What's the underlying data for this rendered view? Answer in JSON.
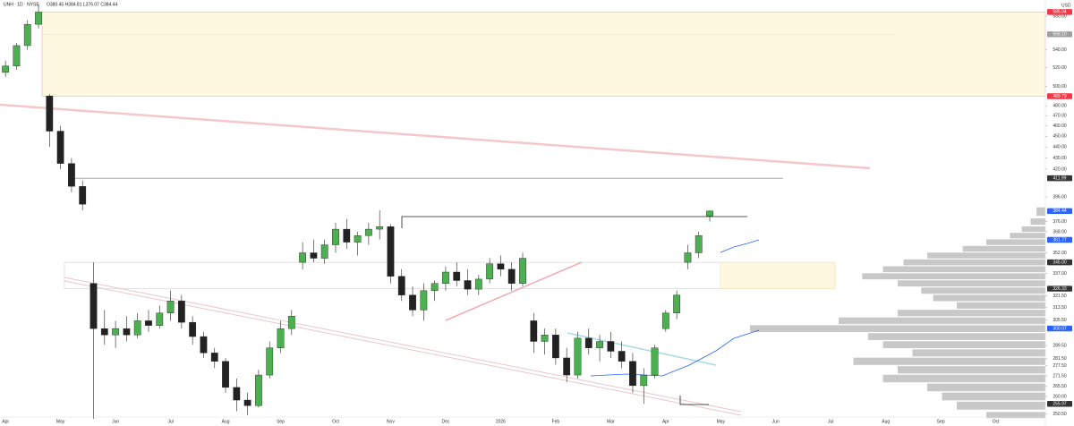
{
  "chart_data": {
    "type": "candlestick",
    "title": "UNH · 1D · NYSE",
    "subtitle": "O380.45 H384.81 L376.07 C384.44",
    "y_axis_label": "USD",
    "log_scale": true,
    "up_color": "#4caf50",
    "down_color": "#222222",
    "categories": [
      "Apr",
      null,
      null,
      null,
      null,
      "May",
      null,
      null,
      null,
      null,
      "Jun",
      null,
      null,
      null,
      null,
      "Jul",
      null,
      null,
      null,
      null,
      "Aug",
      null,
      null,
      null,
      null,
      "Sep",
      null,
      null,
      null,
      null,
      "Oct",
      null,
      null,
      null,
      null,
      "Nov",
      null,
      null,
      null,
      null,
      "Dec",
      null,
      null,
      null,
      null,
      "2026",
      null,
      null,
      null,
      null,
      "Feb",
      null,
      null,
      null,
      null,
      "Mar",
      null,
      null,
      null,
      null,
      "Apr",
      null,
      null,
      null,
      null,
      "May",
      null,
      null,
      null,
      null,
      "Jun",
      null,
      null,
      null,
      null,
      "Jul",
      null,
      null,
      null,
      null,
      "Aug",
      null,
      null,
      null,
      null,
      "Sep",
      null,
      null,
      null,
      null,
      "Oct",
      null,
      null,
      null,
      null
    ],
    "open": [
      515,
      522,
      545,
      570,
      490,
      455,
      425,
      405,
      330,
      300,
      296,
      300,
      296,
      305,
      302,
      310,
      318,
      304,
      295,
      285,
      280,
      265,
      258,
      255,
      272,
      288,
      300,
      345,
      352,
      348,
      358,
      370,
      360,
      365,
      370,
      372,
      335,
      322,
      312,
      325,
      330,
      338,
      332,
      326,
      333,
      344,
      340,
      330,
      305,
      292,
      296,
      282,
      272,
      294,
      288,
      292,
      286,
      280,
      266,
      272,
      300,
      310,
      345,
      352,
      380.45,
      null,
      null,
      null,
      null,
      null,
      null,
      null,
      null,
      null,
      null,
      null,
      null,
      null,
      null,
      null,
      null,
      null,
      null,
      null,
      null,
      null,
      null,
      null,
      null,
      null,
      null,
      null,
      null,
      null,
      null
    ],
    "high": [
      528,
      548,
      575,
      595,
      492,
      460,
      430,
      410,
      345,
      312,
      305,
      308,
      310,
      312,
      315,
      325,
      322,
      308,
      298,
      288,
      282,
      270,
      262,
      275,
      292,
      305,
      312,
      360,
      362,
      362,
      375,
      378,
      368,
      375,
      385,
      374,
      340,
      328,
      330,
      332,
      342,
      345,
      340,
      336,
      348,
      350,
      345,
      352,
      310,
      300,
      300,
      288,
      298,
      300,
      296,
      298,
      292,
      285,
      276,
      290,
      312,
      325,
      358,
      368,
      384.81,
      null,
      null,
      null,
      null,
      null,
      null,
      null,
      null,
      null,
      null,
      null,
      null,
      null,
      null,
      null,
      null,
      null,
      null,
      null,
      null,
      null,
      null,
      null,
      null,
      null,
      null,
      null,
      null,
      null,
      null
    ],
    "low": [
      510,
      518,
      540,
      565,
      440,
      420,
      400,
      385,
      248,
      290,
      288,
      292,
      294,
      298,
      300,
      305,
      300,
      290,
      282,
      276,
      262,
      252,
      250,
      254,
      270,
      285,
      296,
      340,
      345,
      344,
      352,
      355,
      350,
      358,
      362,
      330,
      318,
      308,
      305,
      318,
      325,
      328,
      322,
      322,
      330,
      335,
      325,
      328,
      285,
      284,
      278,
      268,
      270,
      284,
      280,
      282,
      276,
      262,
      256,
      270,
      298,
      306,
      340,
      348,
      376.07,
      null,
      null,
      null,
      null,
      null,
      null,
      null,
      null,
      null,
      null,
      null,
      null,
      null,
      null,
      null,
      null,
      null,
      null,
      null,
      null,
      null,
      null,
      null,
      null,
      null,
      null,
      null,
      null,
      null,
      null
    ],
    "close": [
      522,
      545,
      570,
      585,
      455,
      425,
      405,
      390,
      300,
      296,
      300,
      296,
      305,
      302,
      310,
      318,
      304,
      295,
      285,
      280,
      265,
      258,
      255,
      272,
      288,
      300,
      308,
      352,
      348,
      358,
      370,
      360,
      365,
      370,
      372,
      335,
      322,
      312,
      325,
      330,
      338,
      332,
      326,
      333,
      344,
      340,
      330,
      348,
      292,
      296,
      282,
      272,
      294,
      288,
      292,
      286,
      280,
      266,
      272,
      288,
      310,
      322,
      352,
      365,
      384.44,
      null,
      null,
      null,
      null,
      null,
      null,
      null,
      null,
      null,
      null,
      null,
      null,
      null,
      null,
      null,
      null,
      null,
      null,
      null,
      null,
      null,
      null,
      null,
      null,
      null,
      null,
      null,
      null,
      null,
      null
    ],
    "ylim": [
      248,
      600
    ],
    "yticks": [
      {
        "value": 580,
        "label": "580.00"
      },
      {
        "value": 540,
        "label": "540.00"
      },
      {
        "value": 520,
        "label": "520.00"
      },
      {
        "value": 500,
        "label": "500.00"
      },
      {
        "value": 480,
        "label": "480.00"
      },
      {
        "value": 470,
        "label": "470.00"
      },
      {
        "value": 460,
        "label": "460.00"
      },
      {
        "value": 450,
        "label": "450.00"
      },
      {
        "value": 440,
        "label": "440.00"
      },
      {
        "value": 430,
        "label": "430.00"
      },
      {
        "value": 420,
        "label": "420.00"
      },
      {
        "value": 396,
        "label": "396.00"
      },
      {
        "value": 376,
        "label": "376.00"
      },
      {
        "value": 368,
        "label": "368.00"
      },
      {
        "value": 352,
        "label": "352.00"
      },
      {
        "value": 337,
        "label": "337.00"
      },
      {
        "value": 321.5,
        "label": "321.50"
      },
      {
        "value": 313.5,
        "label": "313.50"
      },
      {
        "value": 305.5,
        "label": "305.50"
      },
      {
        "value": 289.5,
        "label": "289.50"
      },
      {
        "value": 281.5,
        "label": "281.50"
      },
      {
        "value": 277.5,
        "label": "277.50"
      },
      {
        "value": 271.5,
        "label": "271.50"
      },
      {
        "value": 265.5,
        "label": "265.50"
      },
      {
        "value": 260,
        "label": "260.00"
      },
      {
        "value": 250.5,
        "label": "250.50"
      }
    ],
    "price_labels": [
      {
        "value": 585.04,
        "label": "585.04",
        "color": "#f23645"
      },
      {
        "value": 558.1,
        "label": "558.10",
        "color": "#9e9e9e"
      },
      {
        "value": 489.79,
        "label": "489.79",
        "color": "#f23645"
      },
      {
        "value": 411.99,
        "label": "411.99",
        "color": "#333333"
      },
      {
        "value": 384.44,
        "label": "384.44",
        "color": "#2962ff"
      },
      {
        "value": 361.77,
        "label": "361.77",
        "color": "#2962ff"
      },
      {
        "value": 345,
        "label": "345.00",
        "color": "#333333"
      },
      {
        "value": 326.33,
        "label": "326.33",
        "color": "#333333"
      },
      {
        "value": 300.07,
        "label": "300.07",
        "color": "#2962ff"
      },
      {
        "value": 255.97,
        "label": "255.97",
        "color": "#333333"
      }
    ],
    "volume_profile": {
      "color": "#c8c8c8",
      "prices": [
        384,
        376,
        370,
        365,
        360,
        355,
        350,
        345,
        340,
        335,
        330,
        325,
        320,
        315,
        310,
        305,
        300,
        295,
        290,
        285,
        280,
        275,
        270,
        265,
        260,
        255,
        250
      ],
      "values": [
        3,
        5,
        8,
        12,
        20,
        28,
        40,
        48,
        55,
        62,
        50,
        42,
        38,
        30,
        50,
        70,
        100,
        60,
        55,
        45,
        65,
        50,
        55,
        40,
        35,
        30,
        20
      ]
    }
  }
}
